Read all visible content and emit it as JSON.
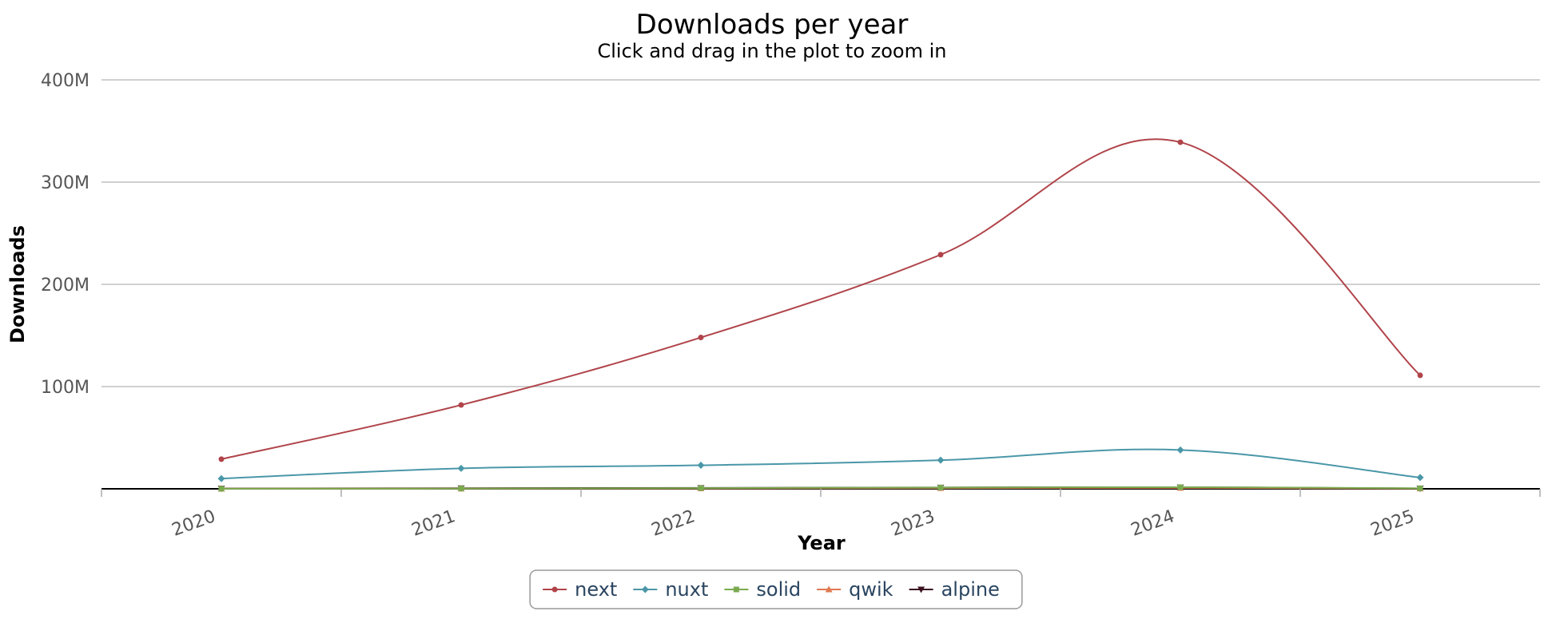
{
  "chart_data": {
    "type": "line",
    "title": "Downloads per year",
    "subtitle": "Click and drag in the plot to zoom in",
    "xlabel": "Year",
    "ylabel": "Downloads",
    "categories": [
      "2020",
      "2021",
      "2022",
      "2023",
      "2024",
      "2025"
    ],
    "y_ticks": [
      {
        "value": 0,
        "label": ""
      },
      {
        "value": 100000000,
        "label": "100M"
      },
      {
        "value": 200000000,
        "label": "200M"
      },
      {
        "value": 300000000,
        "label": "300M"
      },
      {
        "value": 400000000,
        "label": "400M"
      }
    ],
    "ylim": [
      0,
      400000000
    ],
    "smooth": true,
    "grid": true,
    "legend_position": "bottom",
    "series": [
      {
        "name": "next",
        "color": "#b0444a",
        "marker": "circle",
        "values": [
          29000000,
          82000000,
          148000000,
          229000000,
          339000000,
          111000000
        ]
      },
      {
        "name": "nuxt",
        "color": "#4a97a8",
        "marker": "diamond",
        "values": [
          10000000,
          20000000,
          23000000,
          28000000,
          38000000,
          11000000
        ]
      },
      {
        "name": "solid",
        "color": "#7aaa50",
        "marker": "square",
        "values": [
          100000,
          300000,
          700000,
          1200000,
          1600000,
          500000
        ]
      },
      {
        "name": "qwik",
        "color": "#e07850",
        "marker": "triangle",
        "values": [
          50000,
          150000,
          400000,
          700000,
          900000,
          300000
        ]
      },
      {
        "name": "alpine",
        "color": "#3a1020",
        "marker": "triangle-down",
        "values": [
          300000,
          600000,
          900000,
          1300000,
          1500000,
          400000
        ]
      }
    ]
  }
}
